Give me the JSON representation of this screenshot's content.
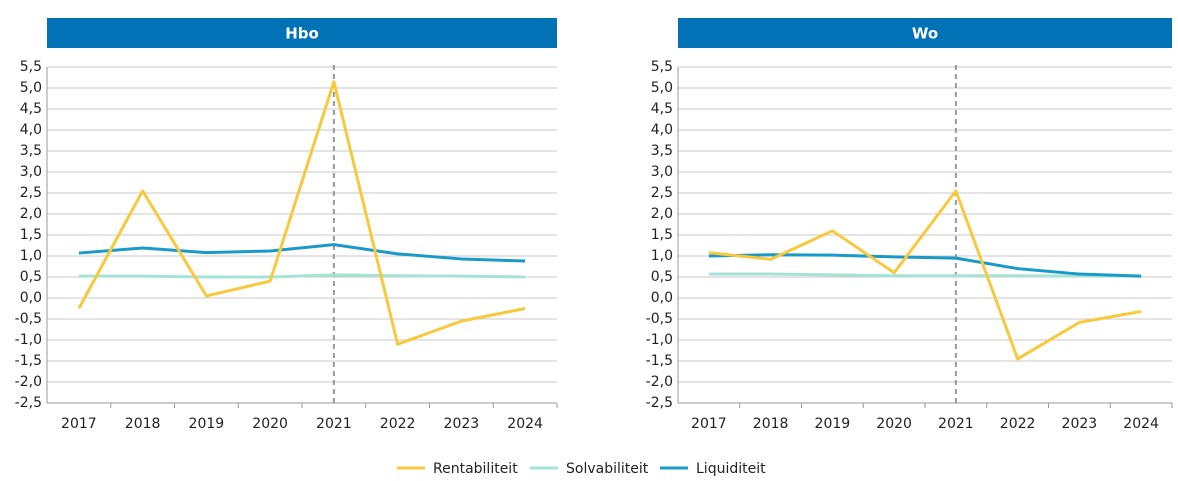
{
  "chart_data": [
    {
      "type": "line",
      "title": "Hbo",
      "header_color": "#0072b5",
      "vline": "2021",
      "categories": [
        "2017",
        "2018",
        "2019",
        "2020",
        "2021",
        "2022",
        "2023",
        "2024"
      ],
      "series": [
        {
          "name": "Rentabiliteit",
          "color": "#f9c93c",
          "values": [
            -0.25,
            2.55,
            0.05,
            0.4,
            5.15,
            -1.1,
            -0.55,
            -0.25
          ]
        },
        {
          "name": "Solvabiliteit",
          "color": "#a6e3d7",
          "values": [
            0.52,
            0.52,
            0.5,
            0.5,
            0.55,
            0.53,
            0.52,
            0.5
          ]
        },
        {
          "name": "Liquiditeit",
          "color": "#1a9ac9",
          "values": [
            1.07,
            1.19,
            1.08,
            1.12,
            1.27,
            1.05,
            0.93,
            0.88
          ]
        }
      ],
      "ylim": [
        -2.5,
        5.5
      ],
      "yticks": [
        {
          "value": -2.5,
          "label": "-2,5"
        },
        {
          "value": -2,
          "label": "-2,0"
        },
        {
          "value": -1.5,
          "label": "-1,5"
        },
        {
          "value": -1,
          "label": "-1,0"
        },
        {
          "value": -0.5,
          "label": "-0,5"
        },
        {
          "value": 0,
          "label": "0,0"
        },
        {
          "value": 0.5,
          "label": "0,5"
        },
        {
          "value": 1,
          "label": "1,0"
        },
        {
          "value": 1.5,
          "label": "1,5"
        },
        {
          "value": 2,
          "label": "2,0"
        },
        {
          "value": 2.5,
          "label": "2,5"
        },
        {
          "value": 3,
          "label": "3,0"
        },
        {
          "value": 3.5,
          "label": "3,5"
        },
        {
          "value": 4,
          "label": "4,0"
        },
        {
          "value": 4.5,
          "label": "4,5"
        },
        {
          "value": 5,
          "label": "5,0"
        },
        {
          "value": 5.5,
          "label": "5,5"
        }
      ],
      "grid": true
    },
    {
      "type": "line",
      "title": "Wo",
      "header_color": "#0072b5",
      "vline": "2021",
      "categories": [
        "2017",
        "2018",
        "2019",
        "2020",
        "2021",
        "2022",
        "2023",
        "2024"
      ],
      "series": [
        {
          "name": "Rentabiliteit",
          "color": "#f9c93c",
          "values": [
            1.08,
            0.92,
            1.6,
            0.6,
            2.55,
            -1.45,
            -0.58,
            -0.32
          ]
        },
        {
          "name": "Solvabiliteit",
          "color": "#a6e3d7",
          "values": [
            0.57,
            0.57,
            0.55,
            0.53,
            0.53,
            0.53,
            0.52,
            0.52
          ]
        },
        {
          "name": "Liquiditeit",
          "color": "#1a9ac9",
          "values": [
            1.0,
            1.03,
            1.02,
            0.98,
            0.95,
            0.7,
            0.57,
            0.52
          ]
        }
      ],
      "ylim": [
        -2.5,
        5.5
      ],
      "yticks": [
        {
          "value": -2.5,
          "label": "-2,5"
        },
        {
          "value": -2,
          "label": "-2,0"
        },
        {
          "value": -1.5,
          "label": "-1,5"
        },
        {
          "value": -1,
          "label": "-1,0"
        },
        {
          "value": -0.5,
          "label": "-0,5"
        },
        {
          "value": 0,
          "label": "0,0"
        },
        {
          "value": 0.5,
          "label": "0,5"
        },
        {
          "value": 1,
          "label": "1,0"
        },
        {
          "value": 1.5,
          "label": "1,5"
        },
        {
          "value": 2,
          "label": "2,0"
        },
        {
          "value": 2.5,
          "label": "2,5"
        },
        {
          "value": 3,
          "label": "3,0"
        },
        {
          "value": 3.5,
          "label": "3,5"
        },
        {
          "value": 4,
          "label": "4,0"
        },
        {
          "value": 4.5,
          "label": "4,5"
        },
        {
          "value": 5,
          "label": "5,0"
        },
        {
          "value": 5.5,
          "label": "5,5"
        }
      ],
      "grid": true
    }
  ]
}
